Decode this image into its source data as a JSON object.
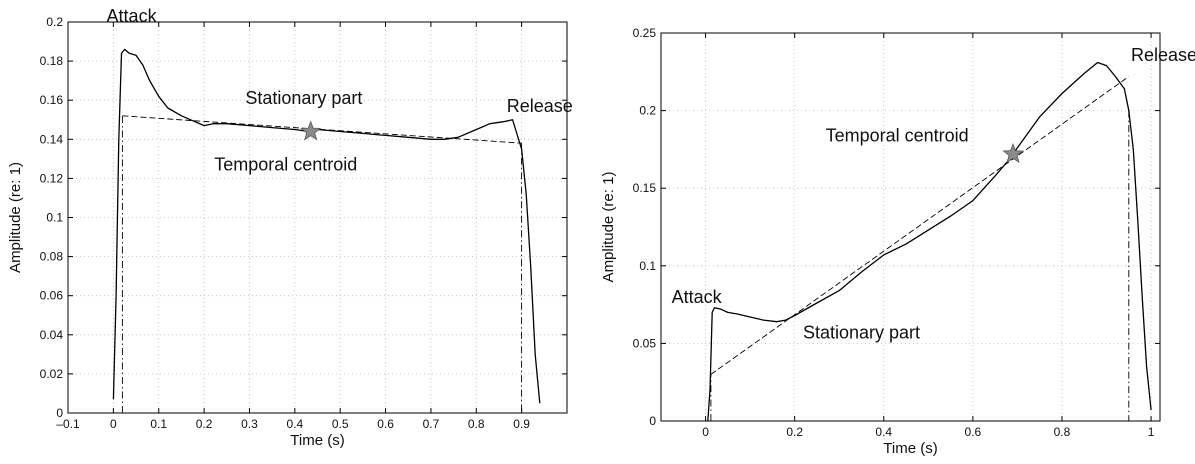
{
  "chart_data": [
    {
      "type": "line",
      "title": "",
      "xlabel": "Time (s)",
      "ylabel": "Amplitude (re: 1)",
      "xlim": [
        -0.1,
        1.0
      ],
      "ylim": [
        0,
        0.2
      ],
      "xticks": [
        -0.1,
        0,
        0.1,
        0.2,
        0.3,
        0.4,
        0.5,
        0.6,
        0.7,
        0.8,
        0.9
      ],
      "xtick_labels": [
        "–0.1",
        "0",
        "0.1",
        "0.2",
        "0.3",
        "0.4",
        "0.5",
        "0.6",
        "0.7",
        "0.8",
        "0.9"
      ],
      "yticks": [
        0,
        0.02,
        0.04,
        0.06,
        0.08,
        0.1,
        0.12,
        0.14,
        0.16,
        0.18,
        0.2
      ],
      "ytick_labels": [
        "0",
        "0.02",
        "0.04",
        "0.06",
        "0.08",
        "0.1",
        "0.12",
        "0.14",
        "0.16",
        "0.18",
        "0.2"
      ],
      "grid": true,
      "series": [
        {
          "role": "envelope",
          "style": "solid",
          "x": [
            0.0,
            0.006,
            0.012,
            0.018,
            0.025,
            0.035,
            0.05,
            0.065,
            0.08,
            0.1,
            0.12,
            0.15,
            0.18,
            0.2,
            0.22,
            0.25,
            0.3,
            0.35,
            0.4,
            0.43,
            0.45,
            0.5,
            0.55,
            0.6,
            0.65,
            0.7,
            0.73,
            0.76,
            0.8,
            0.83,
            0.86,
            0.88,
            0.9,
            0.91,
            0.92,
            0.93,
            0.94
          ],
          "y": [
            0.007,
            0.06,
            0.14,
            0.184,
            0.186,
            0.184,
            0.183,
            0.178,
            0.17,
            0.162,
            0.156,
            0.152,
            0.149,
            0.147,
            0.148,
            0.148,
            0.147,
            0.146,
            0.145,
            0.144,
            0.145,
            0.144,
            0.143,
            0.142,
            0.141,
            0.14,
            0.14,
            0.141,
            0.145,
            0.148,
            0.149,
            0.15,
            0.135,
            0.112,
            0.075,
            0.03,
            0.005
          ]
        },
        {
          "role": "attack-rise",
          "style": "dash-dot",
          "x": [
            0.02,
            0.02
          ],
          "y": [
            0.0,
            0.152
          ]
        },
        {
          "role": "stationary-fit",
          "style": "dashed",
          "x": [
            0.02,
            0.9
          ],
          "y": [
            0.152,
            0.138
          ]
        },
        {
          "role": "release-drop",
          "style": "dash-dot",
          "x": [
            0.9,
            0.9
          ],
          "y": [
            0.138,
            0.0
          ]
        }
      ],
      "marker": {
        "x": 0.435,
        "y": 0.144
      },
      "annotations": [
        {
          "text": "Attack",
          "x": -0.015,
          "y": 0.2
        },
        {
          "text": "Stationary part",
          "x": 0.42,
          "y": 0.158
        },
        {
          "text": "Release",
          "x": 0.94,
          "y": 0.154
        },
        {
          "text": "Temporal centroid",
          "x": 0.38,
          "y": 0.124
        }
      ]
    },
    {
      "type": "line",
      "title": "",
      "xlabel": "Time (s)",
      "ylabel": "Amplitude (re: 1)",
      "xlim": [
        -0.1,
        1.02
      ],
      "ylim": [
        0,
        0.25
      ],
      "xticks": [
        0,
        0.2,
        0.4,
        0.6,
        0.8,
        1
      ],
      "xtick_labels": [
        "0",
        "0.2",
        "0.4",
        "0.6",
        "0.8",
        "1"
      ],
      "yticks": [
        0,
        0.05,
        0.1,
        0.15,
        0.2,
        0.25
      ],
      "ytick_labels": [
        "0",
        "0.05",
        "0.1",
        "0.15",
        "0.2",
        "0.25"
      ],
      "grid": true,
      "series": [
        {
          "role": "envelope",
          "style": "solid",
          "x": [
            0.005,
            0.01,
            0.015,
            0.02,
            0.035,
            0.05,
            0.07,
            0.1,
            0.13,
            0.16,
            0.18,
            0.2,
            0.25,
            0.3,
            0.35,
            0.4,
            0.45,
            0.5,
            0.55,
            0.6,
            0.65,
            0.68,
            0.7,
            0.75,
            0.8,
            0.85,
            0.88,
            0.9,
            0.92,
            0.94,
            0.95,
            0.96,
            0.97,
            0.98,
            0.99,
            1.0
          ],
          "y": [
            0.0,
            0.02,
            0.07,
            0.073,
            0.072,
            0.07,
            0.069,
            0.067,
            0.065,
            0.064,
            0.065,
            0.068,
            0.076,
            0.084,
            0.096,
            0.107,
            0.114,
            0.123,
            0.132,
            0.142,
            0.158,
            0.168,
            0.176,
            0.196,
            0.211,
            0.224,
            0.231,
            0.229,
            0.222,
            0.214,
            0.2,
            0.175,
            0.13,
            0.08,
            0.035,
            0.007
          ]
        },
        {
          "role": "attack-rise",
          "style": "dash-dot",
          "x": [
            0.012,
            0.012
          ],
          "y": [
            0.0,
            0.03
          ]
        },
        {
          "role": "stationary-fit",
          "style": "dashed",
          "x": [
            0.012,
            0.95
          ],
          "y": [
            0.03,
            0.222
          ]
        },
        {
          "role": "release-drop",
          "style": "dash-dot",
          "x": [
            0.95,
            0.95
          ],
          "y": [
            0.2,
            0.0
          ]
        }
      ],
      "marker": {
        "x": 0.69,
        "y": 0.172
      },
      "annotations": [
        {
          "text": "Attack",
          "x": -0.02,
          "y": 0.076
        },
        {
          "text": "Stationary part",
          "x": 0.35,
          "y": 0.053
        },
        {
          "text": "Release",
          "x": 0.955,
          "y": 0.232
        },
        {
          "text": "Temporal centroid",
          "x": 0.43,
          "y": 0.18
        }
      ]
    }
  ]
}
